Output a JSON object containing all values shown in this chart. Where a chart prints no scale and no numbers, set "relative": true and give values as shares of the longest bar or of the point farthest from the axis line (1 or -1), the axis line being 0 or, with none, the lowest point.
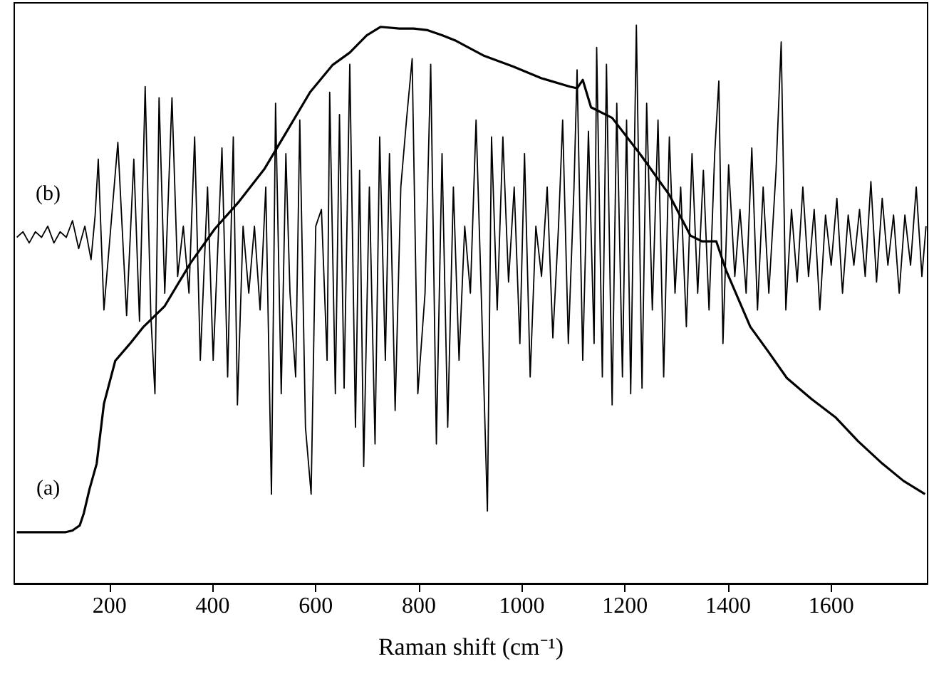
{
  "chart_data": {
    "type": "line",
    "relative": true,
    "xlabel": "Raman shift (cm⁻¹)",
    "xlim": [
      15,
      1787
    ],
    "xticks": [
      200,
      400,
      600,
      800,
      1000,
      1200,
      1400,
      1600
    ],
    "grid": false,
    "legend": false,
    "marker": "none",
    "series": [
      {
        "name": "(a)",
        "color": "#000000",
        "x": [
          20,
          115,
          128,
          142,
          150,
          161,
          175,
          189,
          211,
          239,
          266,
          307,
          357,
          404,
          451,
          500,
          542,
          589,
          633,
          666,
          699,
          726,
          762,
          790,
          817,
          845,
          872,
          927,
          983,
          1038,
          1093,
          1107,
          1118,
          1134,
          1175,
          1231,
          1286,
          1327,
          1349,
          1377,
          1396,
          1443,
          1479,
          1514,
          1561,
          1608,
          1652,
          1699,
          1740,
          1782
        ],
        "values": [
          0.092,
          0.092,
          0.095,
          0.104,
          0.126,
          0.169,
          0.215,
          0.322,
          0.399,
          0.429,
          0.46,
          0.497,
          0.574,
          0.635,
          0.684,
          0.742,
          0.807,
          0.88,
          0.929,
          0.951,
          0.982,
          0.997,
          0.994,
          0.994,
          0.991,
          0.982,
          0.972,
          0.945,
          0.926,
          0.905,
          0.89,
          0.887,
          0.902,
          0.853,
          0.834,
          0.767,
          0.696,
          0.623,
          0.613,
          0.613,
          0.561,
          0.46,
          0.414,
          0.368,
          0.331,
          0.298,
          0.255,
          0.215,
          0.184,
          0.16
        ]
      },
      {
        "name": "(b)",
        "color": "#000000",
        "x": [
          20,
          32,
          44,
          56,
          68,
          80,
          92,
          104,
          116,
          128,
          140,
          152,
          164,
          172,
          178,
          189,
          216,
          233,
          247,
          258,
          269,
          280,
          288,
          296,
          307,
          321,
          332,
          343,
          354,
          365,
          376,
          390,
          401,
          409,
          418,
          429,
          440,
          448,
          459,
          470,
          481,
          492,
          503,
          514,
          522,
          533,
          542,
          550,
          561,
          569,
          580,
          591,
          600,
          611,
          622,
          627,
          638,
          646,
          655,
          666,
          677,
          685,
          693,
          704,
          715,
          724,
          735,
          743,
          754,
          765,
          776,
          787,
          798,
          812,
          823,
          834,
          845,
          856,
          867,
          878,
          889,
          900,
          911,
          922,
          933,
          941,
          952,
          963,
          974,
          985,
          996,
          1005,
          1016,
          1027,
          1038,
          1049,
          1060,
          1071,
          1079,
          1090,
          1101,
          1107,
          1118,
          1129,
          1140,
          1145,
          1156,
          1164,
          1175,
          1184,
          1195,
          1203,
          1211,
          1222,
          1233,
          1242,
          1253,
          1264,
          1275,
          1286,
          1297,
          1308,
          1319,
          1330,
          1341,
          1352,
          1363,
          1374,
          1382,
          1390,
          1401,
          1413,
          1423,
          1435,
          1446,
          1457,
          1468,
          1479,
          1493,
          1503,
          1512,
          1523,
          1534,
          1545,
          1556,
          1567,
          1578,
          1589,
          1600,
          1611,
          1622,
          1633,
          1644,
          1655,
          1666,
          1677,
          1688,
          1699,
          1710,
          1721,
          1732,
          1743,
          1754,
          1765,
          1776,
          1784
        ],
        "values": [
          0.62,
          0.63,
          0.61,
          0.63,
          0.62,
          0.64,
          0.61,
          0.63,
          0.62,
          0.65,
          0.6,
          0.64,
          0.58,
          0.66,
          0.76,
          0.49,
          0.79,
          0.48,
          0.76,
          0.47,
          0.89,
          0.48,
          0.34,
          0.87,
          0.52,
          0.87,
          0.55,
          0.64,
          0.52,
          0.8,
          0.4,
          0.71,
          0.4,
          0.58,
          0.78,
          0.37,
          0.8,
          0.32,
          0.64,
          0.52,
          0.64,
          0.49,
          0.71,
          0.16,
          0.86,
          0.34,
          0.77,
          0.52,
          0.37,
          0.83,
          0.28,
          0.16,
          0.64,
          0.67,
          0.4,
          0.88,
          0.34,
          0.84,
          0.35,
          0.93,
          0.28,
          0.74,
          0.21,
          0.71,
          0.25,
          0.8,
          0.4,
          0.77,
          0.31,
          0.71,
          0.83,
          0.94,
          0.34,
          0.52,
          0.93,
          0.25,
          0.77,
          0.28,
          0.71,
          0.4,
          0.64,
          0.52,
          0.83,
          0.49,
          0.13,
          0.8,
          0.49,
          0.8,
          0.54,
          0.71,
          0.43,
          0.77,
          0.37,
          0.64,
          0.55,
          0.71,
          0.44,
          0.64,
          0.83,
          0.43,
          0.71,
          0.92,
          0.4,
          0.81,
          0.43,
          0.96,
          0.37,
          0.93,
          0.32,
          0.86,
          0.37,
          0.83,
          0.34,
          1.0,
          0.35,
          0.86,
          0.49,
          0.83,
          0.37,
          0.8,
          0.52,
          0.71,
          0.46,
          0.77,
          0.52,
          0.74,
          0.49,
          0.77,
          0.9,
          0.43,
          0.75,
          0.55,
          0.67,
          0.52,
          0.78,
          0.49,
          0.71,
          0.52,
          0.74,
          0.97,
          0.49,
          0.67,
          0.54,
          0.71,
          0.55,
          0.67,
          0.49,
          0.66,
          0.57,
          0.69,
          0.52,
          0.66,
          0.57,
          0.67,
          0.55,
          0.72,
          0.54,
          0.69,
          0.57,
          0.66,
          0.52,
          0.66,
          0.57,
          0.71,
          0.55,
          0.64
        ]
      }
    ]
  }
}
